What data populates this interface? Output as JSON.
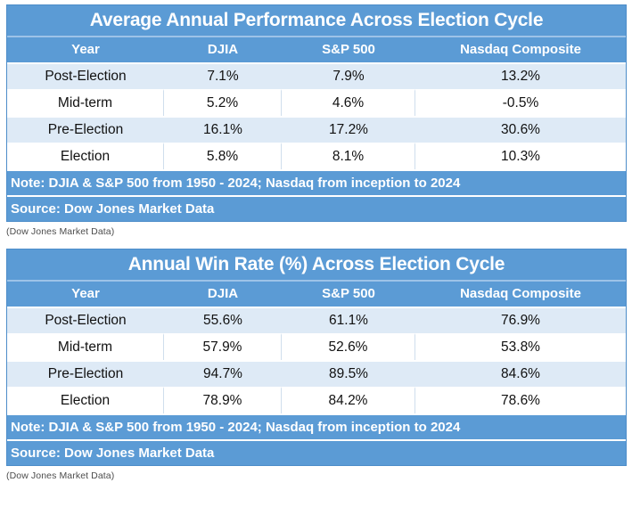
{
  "tables": [
    {
      "title": "Average Annual Performance Across Election Cycle",
      "columns": [
        "Year",
        "DJIA",
        "S&P 500",
        "Nasdaq Composite"
      ],
      "rows": [
        [
          "Post-Election",
          "7.1%",
          "7.9%",
          "13.2%"
        ],
        [
          "Mid-term",
          "5.2%",
          "4.6%",
          "-0.5%"
        ],
        [
          "Pre-Election",
          "16.1%",
          "17.2%",
          "30.6%"
        ],
        [
          "Election",
          "5.8%",
          "8.1%",
          "10.3%"
        ]
      ],
      "note": "Note: DJIA & S&P 500 from 1950 - 2024; Nasdaq from inception to 2024",
      "source": "Source: Dow Jones Market Data",
      "caption": "(Dow Jones Market Data)"
    },
    {
      "title": "Annual Win Rate (%) Across Election Cycle",
      "columns": [
        "Year",
        "DJIA",
        "S&P 500",
        "Nasdaq Composite"
      ],
      "rows": [
        [
          "Post-Election",
          "55.6%",
          "61.1%",
          "76.9%"
        ],
        [
          "Mid-term",
          "57.9%",
          "52.6%",
          "53.8%"
        ],
        [
          "Pre-Election",
          "94.7%",
          "89.5%",
          "84.6%"
        ],
        [
          "Election",
          "78.9%",
          "84.2%",
          "78.6%"
        ]
      ],
      "note": "Note: DJIA & S&P 500 from 1950 - 2024; Nasdaq from inception to 2024",
      "source": "Source: Dow Jones Market Data",
      "caption": "(Dow Jones Market Data)"
    }
  ],
  "colors": {
    "accent_blue": "#5b9bd5",
    "band_light_blue": "#deeaf6",
    "row_white": "#ffffff",
    "header_text": "#ffffff",
    "data_text": "#111111",
    "caption_text": "#4d4d4d",
    "table_border": "#4d8dc9"
  },
  "chart_data": [
    {
      "type": "table",
      "title": "Average Annual Performance Across Election Cycle",
      "columns": [
        "Year",
        "DJIA",
        "S&P 500",
        "Nasdaq Composite"
      ],
      "units": "%",
      "rows": [
        [
          "Post-Election",
          7.1,
          7.9,
          13.2
        ],
        [
          "Mid-term",
          5.2,
          4.6,
          -0.5
        ],
        [
          "Pre-Election",
          16.1,
          17.2,
          30.6
        ],
        [
          "Election",
          5.8,
          8.1,
          10.3
        ]
      ],
      "note": "Note: DJIA & S&P 500 from 1950 - 2024; Nasdaq from inception to 2024",
      "source": "Dow Jones Market Data"
    },
    {
      "type": "table",
      "title": "Annual Win Rate (%) Across Election Cycle",
      "columns": [
        "Year",
        "DJIA",
        "S&P 500",
        "Nasdaq Composite"
      ],
      "units": "%",
      "rows": [
        [
          "Post-Election",
          55.6,
          61.1,
          76.9
        ],
        [
          "Mid-term",
          57.9,
          52.6,
          53.8
        ],
        [
          "Pre-Election",
          94.7,
          89.5,
          84.6
        ],
        [
          "Election",
          78.9,
          84.2,
          78.6
        ]
      ],
      "note": "Note: DJIA & S&P 500 from 1950 - 2024; Nasdaq from inception to 2024",
      "source": "Dow Jones Market Data"
    }
  ]
}
